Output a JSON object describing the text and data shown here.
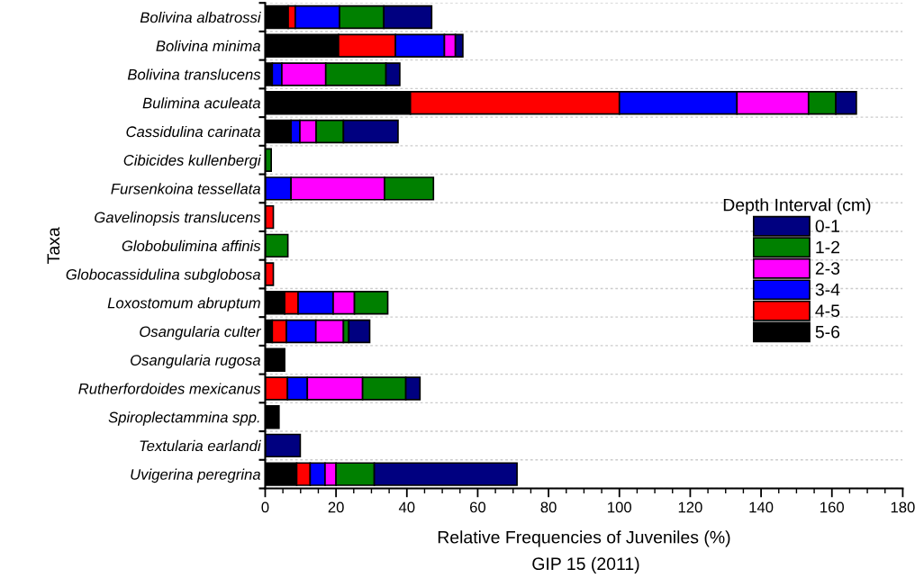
{
  "chart_data": {
    "type": "bar",
    "orientation": "horizontal",
    "stacked": true,
    "categories": [
      "Bolivina albatrossi",
      "Bolivina minima",
      "Bolivina translucens",
      "Bulimina aculeata",
      "Cassidulina carinata",
      "Cibicides kullenbergi",
      "Fursenkoina tessellata",
      "Gavelinopsis translucens",
      "Globobulimina affinis",
      "Globocassidulina subglobosa",
      "Loxostomum abruptum",
      "Osangularia culter",
      "Osangularia rugosa",
      "Rutherfordoides mexicanus",
      "Spiroplectammina spp.",
      "Textularia earlandi",
      "Uvigerina peregrina"
    ],
    "series": [
      {
        "name": "5-6",
        "color": "#000000",
        "values": [
          6.5,
          20.7,
          2.0,
          41.0,
          7.3,
          0,
          0,
          0,
          0,
          0,
          5.5,
          2.0,
          5.5,
          0,
          3.9,
          0,
          8.9
        ]
      },
      {
        "name": "4-5",
        "color": "#ff0000",
        "values": [
          2.0,
          16.1,
          0,
          59.0,
          0,
          0,
          0,
          2.3,
          0,
          2.3,
          3.8,
          4.0,
          0,
          6.3,
          0,
          0,
          3.8
        ]
      },
      {
        "name": "3-4",
        "color": "#0000ff",
        "values": [
          12.5,
          13.8,
          2.7,
          33.2,
          2.5,
          0,
          7.3,
          0,
          0,
          0,
          9.9,
          8.3,
          0,
          5.6,
          0,
          0,
          4.2
        ]
      },
      {
        "name": "2-3",
        "color": "#ff00ff",
        "values": [
          0,
          3.1,
          12.4,
          20.2,
          4.6,
          0,
          26.4,
          0,
          0,
          0,
          6.0,
          7.8,
          0,
          15.6,
          0,
          0,
          3.1
        ]
      },
      {
        "name": "1-2",
        "color": "#008000",
        "values": [
          12.5,
          0,
          17.0,
          7.7,
          7.7,
          1.7,
          13.8,
          0,
          6.4,
          0,
          9.4,
          1.5,
          0,
          12.2,
          0,
          0,
          10.8
        ]
      },
      {
        "name": "0-1",
        "color": "#000080",
        "values": [
          13.5,
          2.1,
          3.9,
          5.8,
          15.4,
          0,
          0,
          0,
          0,
          0,
          0,
          5.9,
          0,
          4.0,
          0,
          9.9,
          40.3
        ]
      }
    ],
    "xlim": [
      0,
      180
    ],
    "xticks": [
      0,
      20,
      40,
      60,
      80,
      100,
      120,
      140,
      160,
      180
    ],
    "xlabel": "Relative Frequencies of Juveniles (%)",
    "ylabel": "Taxa",
    "legend_title": "Depth Interval (cm)",
    "legend": "right",
    "grid": "y",
    "annotations": [
      "GIP 15 (2011)"
    ]
  }
}
